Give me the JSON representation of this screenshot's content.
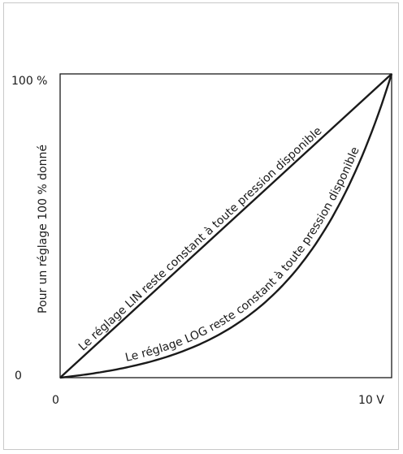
{
  "chart_data": {
    "type": "line",
    "title": "",
    "xlabel": "",
    "ylabel": "Pour un réglage 100 % donné",
    "x_ticks": [
      "0",
      "10 V"
    ],
    "y_ticks": [
      "0",
      "100 %"
    ],
    "xlim": [
      0,
      10
    ],
    "ylim": [
      0,
      100
    ],
    "grid": false,
    "series": [
      {
        "name": "Le réglage LIN reste constant à toute pression disponible",
        "shape": "linear",
        "x": [
          0,
          2,
          4,
          6,
          8,
          10
        ],
        "y": [
          0,
          20,
          40,
          60,
          80,
          100
        ]
      },
      {
        "name": "Le réglage LOG reste constant à toute pression disponible",
        "shape": "logarithmic",
        "x": [
          0,
          2,
          4,
          6,
          8,
          9,
          10
        ],
        "y": [
          0,
          3,
          8,
          17,
          36,
          57,
          100
        ]
      }
    ]
  }
}
